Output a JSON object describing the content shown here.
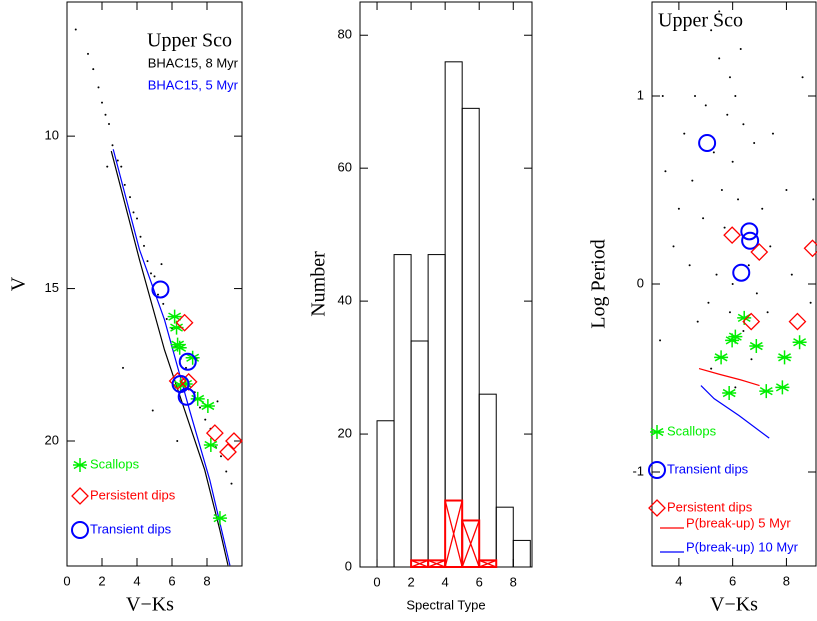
{
  "chart_data": [
    {
      "type": "scatter",
      "title": "Upper Sco",
      "x_label": "V−Ks",
      "y_label": "V",
      "xlim": [
        0,
        10
      ],
      "ylim": [
        24.1,
        5.6
      ],
      "xticks": [
        0,
        2,
        4,
        6,
        8
      ],
      "yticks": [
        10,
        15,
        20
      ],
      "series": [
        {
          "color": "#000000",
          "marker": "dot",
          "x": [
            0.5,
            1.2,
            1.5,
            1.8,
            2.0,
            2.2,
            2.4,
            2.6,
            2.9,
            3.1,
            3.3,
            3.6,
            3.8,
            4.0,
            4.2,
            4.4,
            4.6,
            4.8,
            5.0,
            5.2,
            5.5,
            5.7,
            6.0,
            6.2,
            6.5,
            6.8,
            7.0,
            7.3,
            7.6,
            7.9,
            8.2,
            8.5,
            8.8,
            9.1,
            9.4,
            4.9,
            3.2,
            6.3,
            2.3,
            5.4,
            7.4,
            8.6
          ],
          "values": [
            6.5,
            7.3,
            7.8,
            8.4,
            8.9,
            9.3,
            9.6,
            10.3,
            10.8,
            11.0,
            11.6,
            12.0,
            12.5,
            12.7,
            13.3,
            13.6,
            14.1,
            14.5,
            14.6,
            15.2,
            15.5,
            16.0,
            16.3,
            16.9,
            17.3,
            17.6,
            18.2,
            18.4,
            18.9,
            19.3,
            19.6,
            20.2,
            20.5,
            21.0,
            21.4,
            19.0,
            17.6,
            20.0,
            11.0,
            14.2,
            17.3,
            18.7
          ]
        },
        {
          "name": "BHAC15, 8 Myr",
          "color": "#000000",
          "marker": "line",
          "x": [
            2.53,
            4.14,
            5.57,
            6.72,
            7.87,
            8.74,
            9.2
          ],
          "values": [
            10.49,
            14.05,
            17.01,
            18.98,
            20.95,
            22.93,
            24.08
          ]
        },
        {
          "name": "BHAC15, 5 Myr",
          "color": "#0000ff",
          "marker": "line",
          "x": [
            2.64,
            4.14,
            5.57,
            7.0,
            8.16,
            9.31
          ],
          "values": [
            10.43,
            13.72,
            16.02,
            18.98,
            21.28,
            24.08
          ]
        },
        {
          "name": "Scallops",
          "color": "#00ee00",
          "marker": "asterisk",
          "x": [
            6.15,
            6.26,
            6.32,
            6.44,
            7.18,
            6.49,
            6.78,
            7.47,
            8.05,
            8.22,
            8.74
          ],
          "values": [
            15.92,
            16.28,
            16.84,
            16.94,
            17.27,
            18.16,
            18.13,
            18.62,
            18.85,
            20.13,
            22.53
          ]
        },
        {
          "name": "Persistent dips",
          "color": "#ff0000",
          "marker": "diamond",
          "x": [
            6.72,
            6.32,
            6.95,
            8.45,
            9.2,
            9.54
          ],
          "values": [
            16.12,
            18.03,
            18.06,
            19.74,
            20.36,
            20.0
          ]
        },
        {
          "name": "Transient dips",
          "color": "#0000ff",
          "marker": "circle",
          "x": [
            5.34,
            6.9,
            6.49,
            6.84
          ],
          "values": [
            15.03,
            17.4,
            18.13,
            18.55
          ]
        }
      ]
    },
    {
      "type": "histogram",
      "x_label": "Spectral Type",
      "y_label": "Number",
      "xlim": [
        -1,
        9.1
      ],
      "ylim": [
        0,
        85
      ],
      "xticks": [
        0,
        2,
        4,
        6,
        8
      ],
      "yticks": [
        0,
        20,
        40,
        60,
        80
      ],
      "bins": [
        0,
        1,
        2,
        3,
        4,
        5,
        6,
        7,
        8,
        9
      ],
      "series": [
        {
          "color": "#000000",
          "hatch": false,
          "values": [
            22,
            47,
            34,
            47,
            76,
            69,
            26,
            9,
            4
          ]
        },
        {
          "color": "#ff0000",
          "hatch": true,
          "values": [
            0,
            0,
            1,
            1,
            10,
            7,
            1,
            0,
            0
          ]
        }
      ]
    },
    {
      "type": "scatter",
      "title": "Upper Sco",
      "x_label": "V−Ks",
      "y_label": "Log Period",
      "xlim": [
        3,
        9.1
      ],
      "ylim": [
        -1.5,
        1.5
      ],
      "xticks": [
        4,
        6,
        8
      ],
      "yticks": [
        -1,
        0,
        1
      ],
      "series": [
        {
          "color": "#000000",
          "marker": "dot",
          "x": [
            5.2,
            5.5,
            5.9,
            6.1,
            4.6,
            5.0,
            5.8,
            6.4,
            4.2,
            5.3,
            6.0,
            6.8,
            7.5,
            8.6,
            3.5,
            4.5,
            5.6,
            6.2,
            7.1,
            8.0,
            4.9,
            5.7,
            6.6,
            7.4,
            3.8,
            4.4,
            5.4,
            6.0,
            6.9,
            8.2,
            5.1,
            5.9,
            6.4,
            7.3,
            4.7,
            8.9,
            3.3,
            5.5,
            6.3,
            4.0,
            9.0,
            6.7,
            5.2,
            6.1,
            3.4
          ],
          "values": [
            1.35,
            1.2,
            1.1,
            1.0,
            1.0,
            0.95,
            0.9,
            0.85,
            0.8,
            0.7,
            0.65,
            0.75,
            0.8,
            1.1,
            0.6,
            0.55,
            0.5,
            0.45,
            0.4,
            0.5,
            0.35,
            0.3,
            0.1,
            0.2,
            0.2,
            0.1,
            0.05,
            0.0,
            -0.05,
            0.05,
            -0.1,
            -0.15,
            -0.25,
            -0.15,
            -0.2,
            -0.1,
            -0.3,
            1.45,
            1.25,
            0.4,
            0.45,
            -0.4,
            -0.45,
            -0.55,
            1.0
          ]
        },
        {
          "name": "Scallops",
          "color": "#00ee00",
          "marker": "asterisk",
          "x": [
            6.43,
            5.98,
            6.1,
            5.57,
            6.88,
            7.93,
            8.49,
            5.87,
            7.25,
            7.85
          ],
          "values": [
            -0.18,
            -0.3,
            -0.28,
            -0.39,
            -0.33,
            -0.39,
            -0.31,
            -0.58,
            -0.57,
            -0.55
          ]
        },
        {
          "name": "Transient dips",
          "color": "#0000ff",
          "marker": "circle",
          "x": [
            5.05,
            6.62,
            6.65,
            6.32
          ],
          "values": [
            0.75,
            0.28,
            0.23,
            0.06
          ]
        },
        {
          "name": "Persistent dips",
          "color": "#ff0000",
          "marker": "diamond",
          "x": [
            5.98,
            6.99,
            6.69,
            8.41,
            8.97
          ],
          "values": [
            0.26,
            0.17,
            -0.2,
            -0.2,
            0.19
          ]
        },
        {
          "name": "P(break-up) 5 Myr",
          "color": "#ff0000",
          "marker": "line",
          "x": [
            4.75,
            5.5,
            6.3,
            7.0
          ],
          "values": [
            -0.45,
            -0.48,
            -0.51,
            -0.54
          ]
        },
        {
          "name": "P(break-up) 10 Myr",
          "color": "#0000ff",
          "marker": "line",
          "x": [
            4.82,
            5.31,
            6.24,
            7.36
          ],
          "values": [
            -0.54,
            -0.61,
            -0.7,
            -0.82
          ]
        }
      ]
    }
  ]
}
